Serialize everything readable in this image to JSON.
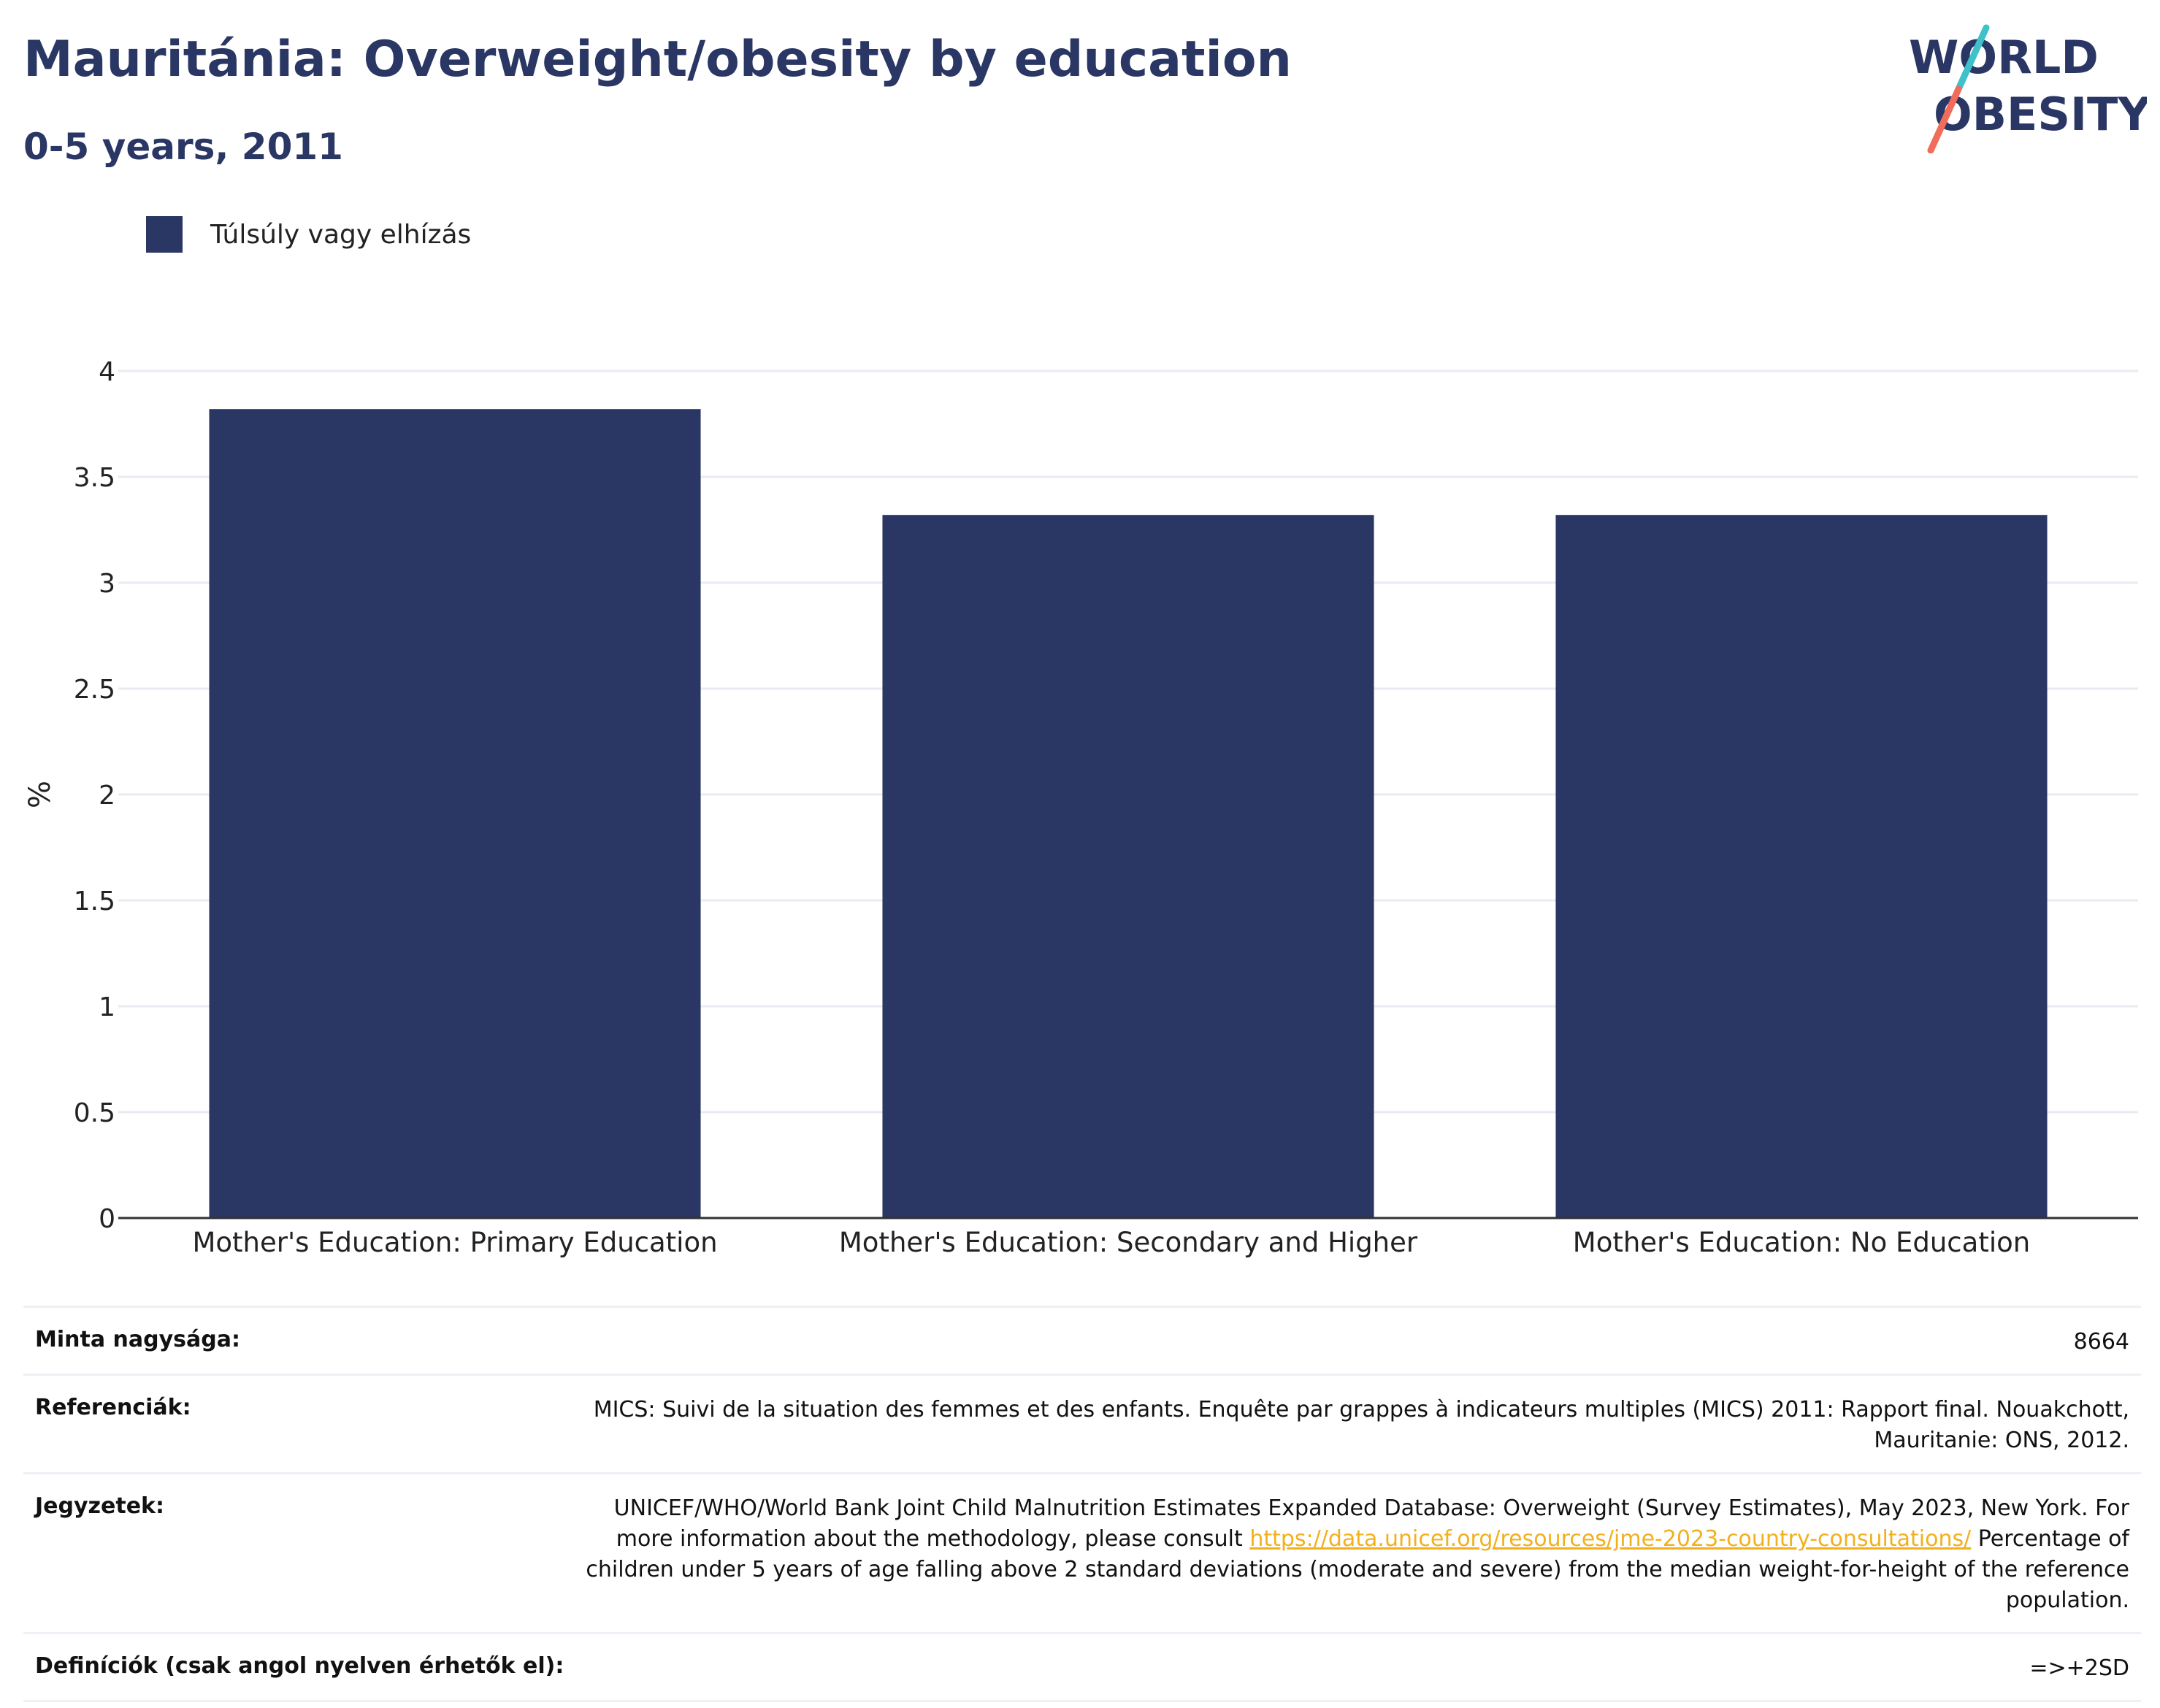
{
  "header": {
    "title": "Mauritánia: Overweight/obesity by education",
    "subtitle": "0-5 years, 2011"
  },
  "logo": {
    "line1": "WORLD",
    "line2": "OBESITY",
    "colors": {
      "text": "#2a3663",
      "slash_top": "#3fc1c9",
      "slash_bottom": "#f06c5b"
    }
  },
  "legend": {
    "label": "Túlsúly vagy elhízás",
    "color": "#2a3663"
  },
  "chart_data": {
    "type": "bar",
    "categories": [
      "Mother's Education: Primary Education",
      "Mother's Education: Secondary and Higher",
      "Mother's Education: No Education"
    ],
    "series": [
      {
        "name": "Túlsúly vagy elhízás",
        "values": [
          3.82,
          3.32,
          3.32
        ],
        "color": "#2a3663"
      }
    ],
    "ylabel": "%",
    "ylim": [
      0,
      4
    ],
    "yticks": [
      0,
      0.5,
      1,
      1.5,
      2,
      2.5,
      3,
      3.5,
      4
    ],
    "ytick_labels": [
      "0",
      "0.5",
      "1",
      "1.5",
      "2",
      "2.5",
      "3",
      "3.5",
      "4"
    ],
    "grid": true,
    "legend_position": "top-left"
  },
  "info": {
    "sample": {
      "label": "Minta nagysága:",
      "value": "8664"
    },
    "references": {
      "label": "Referenciák:",
      "value": "MICS: Suivi de la situation des femmes et des enfants. Enquête par grappes à indicateurs multiples (MICS) 2011: Rapport final. Nouakchott, Mauritanie: ONS, 2012."
    },
    "notes": {
      "label": "Jegyzetek:",
      "text_before": "UNICEF/WHO/World Bank Joint Child Malnutrition Estimates Expanded Database: Overweight (Survey Estimates), May 2023, New York. For more information about the methodology, please consult ",
      "link": "https://data.unicef.org/resources/jme-2023-country-consultations/",
      "text_after": " Percentage of children under 5 years of age falling above 2 standard deviations (moderate and severe) from the median weight-for-height of the reference population."
    },
    "definitions": {
      "label": "Definíciók (csak angol nyelven érhetők el):",
      "value": "=>+2SD"
    }
  }
}
